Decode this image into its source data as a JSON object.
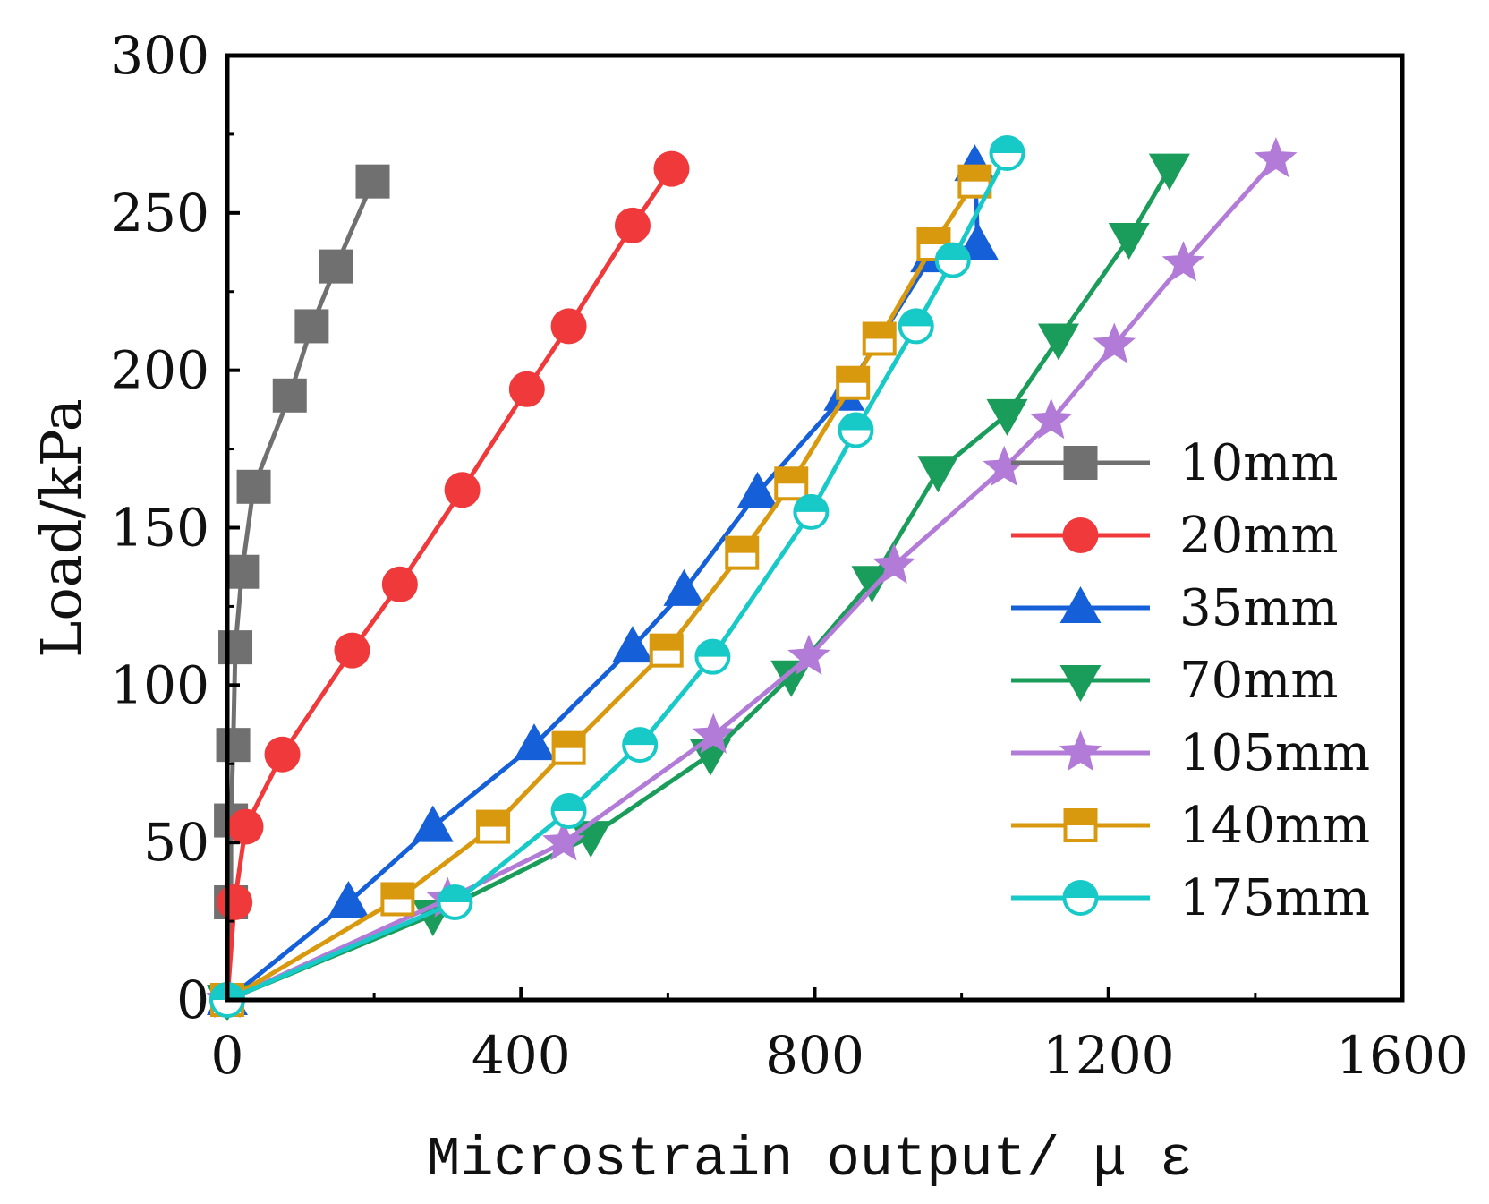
{
  "chart_data": {
    "type": "line",
    "title": "",
    "xlabel": "Microstrain output/ μ ε",
    "ylabel": "Load/kPa",
    "xlim": [
      0,
      1600
    ],
    "ylim": [
      0,
      300
    ],
    "xticks": [
      0,
      400,
      800,
      1200,
      1600
    ],
    "yticks": [
      0,
      50,
      100,
      150,
      200,
      250,
      300
    ],
    "legend_position": "right",
    "series": [
      {
        "name": "10mm",
        "color": "#707070",
        "marker": "square-filled",
        "points": [
          [
            0,
            0
          ],
          [
            5,
            31
          ],
          [
            5,
            57
          ],
          [
            8,
            81
          ],
          [
            11,
            112
          ],
          [
            20,
            136
          ],
          [
            36,
            163
          ],
          [
            85,
            192
          ],
          [
            115,
            214
          ],
          [
            148,
            233
          ],
          [
            198,
            260
          ]
        ]
      },
      {
        "name": "20mm",
        "color": "#f0393a",
        "marker": "circle-filled",
        "points": [
          [
            0,
            0
          ],
          [
            10,
            31
          ],
          [
            25,
            55
          ],
          [
            75,
            78
          ],
          [
            170,
            111
          ],
          [
            235,
            132
          ],
          [
            320,
            162
          ],
          [
            408,
            194
          ],
          [
            465,
            214
          ],
          [
            552,
            246
          ],
          [
            605,
            264
          ]
        ]
      },
      {
        "name": "35mm",
        "color": "#1560d8",
        "marker": "triangle-up",
        "points": [
          [
            0,
            0
          ],
          [
            165,
            31
          ],
          [
            280,
            55
          ],
          [
            418,
            81
          ],
          [
            552,
            112
          ],
          [
            622,
            130
          ],
          [
            722,
            161
          ],
          [
            840,
            192
          ],
          [
            958,
            236
          ],
          [
            1022,
            240
          ],
          [
            1018,
            265
          ]
        ]
      },
      {
        "name": "70mm",
        "color": "#1a9d5b",
        "marker": "triangle-down",
        "points": [
          [
            0,
            0
          ],
          [
            280,
            27
          ],
          [
            495,
            52
          ],
          [
            658,
            78
          ],
          [
            768,
            103
          ],
          [
            878,
            133
          ],
          [
            968,
            168
          ],
          [
            1062,
            186
          ],
          [
            1132,
            210
          ],
          [
            1228,
            242
          ],
          [
            1283,
            264
          ]
        ]
      },
      {
        "name": "105mm",
        "color": "#b27bd8",
        "marker": "star",
        "points": [
          [
            0,
            0
          ],
          [
            300,
            32
          ],
          [
            458,
            50
          ],
          [
            662,
            84
          ],
          [
            792,
            109
          ],
          [
            908,
            138
          ],
          [
            1058,
            169
          ],
          [
            1122,
            184
          ],
          [
            1208,
            208
          ],
          [
            1302,
            234
          ],
          [
            1428,
            267
          ]
        ]
      },
      {
        "name": "140mm",
        "color": "#d9990e",
        "marker": "square-half",
        "points": [
          [
            0,
            0
          ],
          [
            232,
            32
          ],
          [
            362,
            55
          ],
          [
            465,
            80
          ],
          [
            598,
            111
          ],
          [
            701,
            142
          ],
          [
            768,
            164
          ],
          [
            852,
            196
          ],
          [
            888,
            210
          ],
          [
            962,
            240
          ],
          [
            1018,
            260
          ]
        ]
      },
      {
        "name": "175mm",
        "color": "#17c9c7",
        "marker": "circle-half",
        "points": [
          [
            0,
            0
          ],
          [
            310,
            31
          ],
          [
            465,
            60
          ],
          [
            562,
            81
          ],
          [
            661,
            109
          ],
          [
            795,
            155
          ],
          [
            856,
            181
          ],
          [
            938,
            214
          ],
          [
            988,
            235
          ],
          [
            1062,
            269
          ]
        ]
      }
    ]
  }
}
